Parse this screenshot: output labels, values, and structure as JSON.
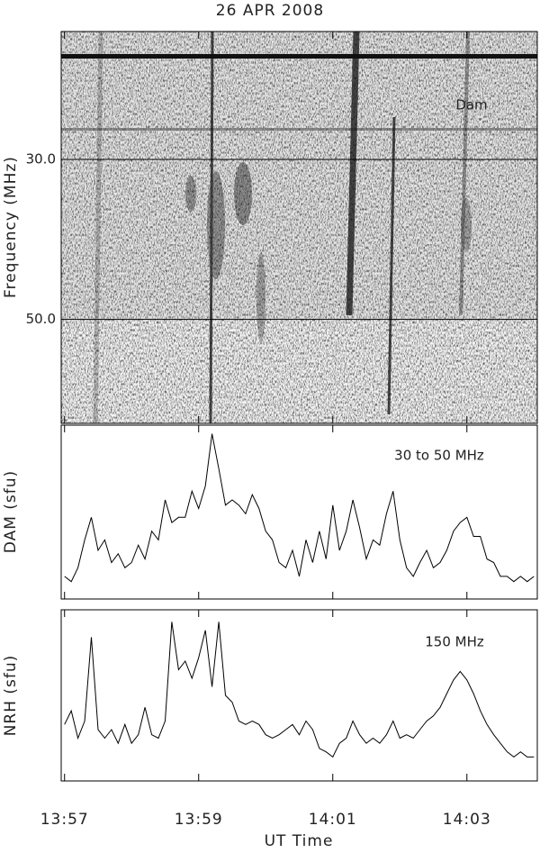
{
  "chart_data": [
    {
      "type": "spectrogram",
      "title": "26 APR 2008",
      "ylabel": "Frequency (MHz)",
      "annotation": "Dam",
      "xlim": [
        836.95,
        844.05
      ],
      "ylim": [
        63,
        14
      ],
      "yticks": [
        {
          "value": 30,
          "label": "30.0"
        },
        {
          "value": 50,
          "label": "50.0"
        }
      ],
      "grid": true
    },
    {
      "type": "line",
      "ylabel": "DAM (sfu)",
      "annotation": "30 to 50 MHz",
      "color": "#000000",
      "xlim": [
        836.95,
        844.05
      ],
      "ylim": [
        0,
        100
      ],
      "x": [
        837.0,
        837.1,
        837.2,
        837.3,
        837.4,
        837.5,
        837.6,
        837.7,
        837.8,
        837.9,
        838.0,
        838.1,
        838.2,
        838.3,
        838.4,
        838.5,
        838.6,
        838.7,
        838.8,
        838.9,
        839.0,
        839.1,
        839.2,
        839.3,
        839.4,
        839.5,
        839.6,
        839.7,
        839.8,
        839.9,
        840.0,
        840.1,
        840.2,
        840.3,
        840.4,
        840.5,
        840.6,
        840.7,
        840.8,
        840.9,
        841.0,
        841.1,
        841.2,
        841.3,
        841.4,
        841.5,
        841.6,
        841.7,
        841.8,
        841.9,
        842.0,
        842.1,
        842.2,
        842.3,
        842.4,
        842.5,
        842.6,
        842.7,
        842.8,
        842.9,
        843.0,
        843.1,
        843.2,
        843.3,
        843.4,
        843.5,
        843.6,
        843.7,
        843.8,
        843.9,
        844.0
      ],
      "values": [
        13,
        10,
        18,
        34,
        47,
        28,
        34,
        21,
        26,
        18,
        21,
        31,
        23,
        39,
        34,
        57,
        44,
        47,
        47,
        62,
        52,
        65,
        95,
        75,
        54,
        57,
        54,
        49,
        60,
        52,
        39,
        34,
        21,
        18,
        28,
        13,
        34,
        21,
        39,
        23,
        54,
        28,
        39,
        57,
        41,
        23,
        34,
        31,
        49,
        62,
        34,
        18,
        13,
        21,
        28,
        18,
        21,
        28,
        39,
        44,
        47,
        36,
        36,
        23,
        21,
        13,
        13,
        10,
        13,
        10,
        13
      ]
    },
    {
      "type": "line",
      "ylabel": "NRH (sfu)",
      "annotation": "150 MHz",
      "xlabel": "UT Time",
      "color": "#000000",
      "xlim": [
        836.95,
        844.05
      ],
      "ylim": [
        0,
        100
      ],
      "xticks": [
        {
          "value": 837,
          "label": "13:57"
        },
        {
          "value": 839,
          "label": "13:59"
        },
        {
          "value": 841,
          "label": "14:01"
        },
        {
          "value": 843,
          "label": "14:03"
        }
      ],
      "x": [
        837.0,
        837.1,
        837.2,
        837.3,
        837.4,
        837.5,
        837.6,
        837.7,
        837.8,
        837.9,
        838.0,
        838.1,
        838.2,
        838.3,
        838.4,
        838.5,
        838.6,
        838.7,
        838.8,
        838.9,
        839.0,
        839.1,
        839.2,
        839.3,
        839.4,
        839.5,
        839.6,
        839.7,
        839.8,
        839.9,
        840.0,
        840.1,
        840.2,
        840.3,
        840.4,
        840.5,
        840.6,
        840.7,
        840.8,
        840.9,
        841.0,
        841.1,
        841.2,
        841.3,
        841.4,
        841.5,
        841.6,
        841.7,
        841.8,
        841.9,
        842.0,
        842.1,
        842.2,
        842.3,
        842.4,
        842.5,
        842.6,
        842.7,
        842.8,
        842.9,
        843.0,
        843.1,
        843.2,
        843.3,
        843.4,
        843.5,
        843.6,
        843.7,
        843.8,
        843.9,
        844.0
      ],
      "values": [
        33,
        41,
        25,
        35,
        84,
        30,
        25,
        30,
        22,
        33,
        22,
        27,
        43,
        27,
        25,
        35,
        93,
        65,
        70,
        60,
        72,
        88,
        55,
        93,
        50,
        46,
        35,
        33,
        35,
        33,
        27,
        25,
        27,
        30,
        33,
        27,
        35,
        30,
        19,
        17,
        14,
        22,
        25,
        35,
        27,
        22,
        25,
        22,
        27,
        35,
        25,
        27,
        25,
        30,
        35,
        38,
        43,
        51,
        59,
        64,
        59,
        51,
        41,
        33,
        27,
        22,
        17,
        14,
        17,
        14,
        14
      ]
    }
  ]
}
